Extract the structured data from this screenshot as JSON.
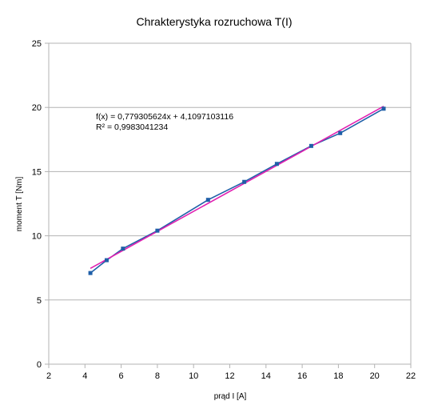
{
  "chart_data": {
    "type": "scatter",
    "title": "Chrakterystyka rozruchowa T(I)",
    "xlabel": "prąd I [A]",
    "ylabel": "moment T [Nm]",
    "xlim": [
      2,
      22
    ],
    "ylim": [
      0,
      25
    ],
    "xticks": [
      2,
      4,
      6,
      8,
      10,
      12,
      14,
      16,
      18,
      20,
      22
    ],
    "yticks": [
      0,
      5,
      10,
      15,
      20,
      25
    ],
    "grid": "horizontal",
    "legend": "none",
    "series": [
      {
        "color": "#1f5fa8",
        "marker": "square",
        "x": [
          4.3,
          5.2,
          6.1,
          8.0,
          10.8,
          12.8,
          14.6,
          16.5,
          18.1,
          20.5
        ],
        "y": [
          7.1,
          8.1,
          9.0,
          10.4,
          12.8,
          14.2,
          15.6,
          17.0,
          18.0,
          19.9
        ]
      }
    ],
    "trendline": {
      "type": "linear",
      "color": "#e01fb0",
      "slope": 0.779305624,
      "intercept": 4.1097103116,
      "x_range": [
        4.3,
        20.5
      ]
    },
    "annotations": {
      "equation": "f(x) = 0,779305624x + 4,1097103116",
      "r_squared": "R² = 0,9983041234"
    }
  }
}
